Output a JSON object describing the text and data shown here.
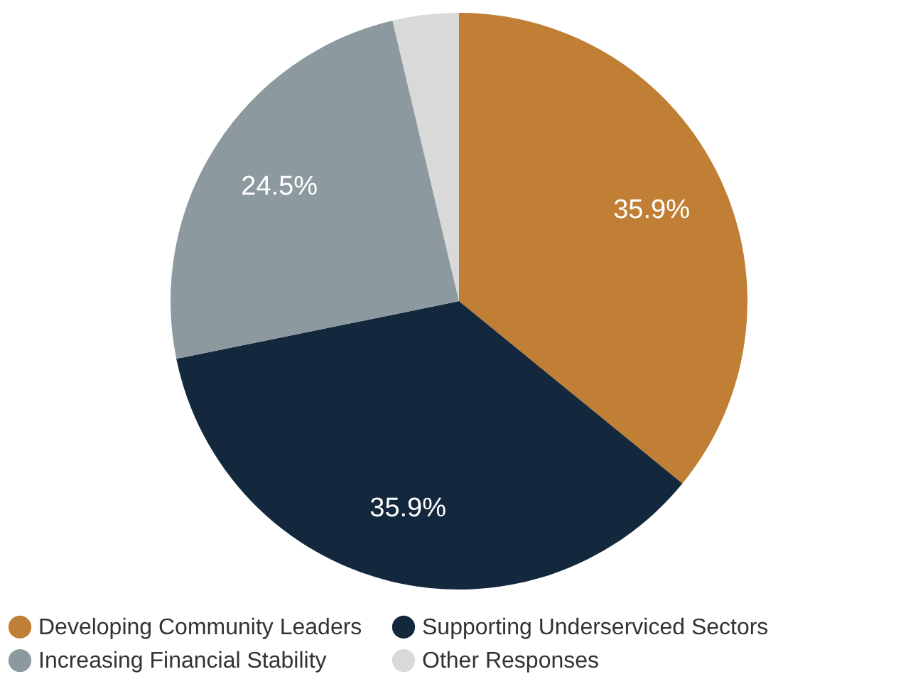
{
  "chart_data": {
    "type": "pie",
    "categories": [
      "Developing Community Leaders",
      "Supporting Underserviced Sectors",
      "Increasing Financial Stability",
      "Other Responses"
    ],
    "values": [
      35.9,
      35.9,
      24.5,
      3.7
    ],
    "value_labels": [
      "35.9%",
      "35.9%",
      "24.5%",
      null
    ],
    "colors": [
      "#c17f35",
      "#14283d",
      "#8c9aa0",
      "#d9d9d9"
    ],
    "legend": "bottom"
  }
}
